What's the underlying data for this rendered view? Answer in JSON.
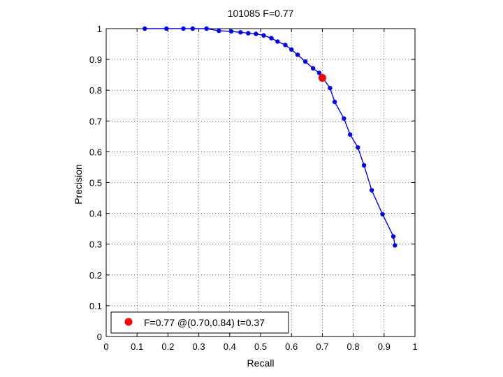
{
  "chart_data": {
    "type": "line",
    "title": "101085 F=0.77",
    "xlabel": "Recall",
    "ylabel": "Precision",
    "xlim": [
      0,
      1
    ],
    "ylim": [
      0,
      1
    ],
    "xticks": [
      "0",
      "0.1",
      "0.2",
      "0.3",
      "0.4",
      "0.5",
      "0.6",
      "0.7",
      "0.8",
      "0.9",
      "1"
    ],
    "yticks": [
      "0",
      "0.1",
      "0.2",
      "0.3",
      "0.4",
      "0.5",
      "0.6",
      "0.7",
      "0.8",
      "0.9",
      "1"
    ],
    "grid": true,
    "series": [
      {
        "color": "#0000ff",
        "points": [
          [
            0.125,
            1.0
          ],
          [
            0.195,
            1.0
          ],
          [
            0.25,
            1.0
          ],
          [
            0.28,
            1.0
          ],
          [
            0.325,
            1.0
          ],
          [
            0.365,
            0.993
          ],
          [
            0.405,
            0.991
          ],
          [
            0.435,
            0.988
          ],
          [
            0.46,
            0.985
          ],
          [
            0.485,
            0.983
          ],
          [
            0.51,
            0.978
          ],
          [
            0.535,
            0.969
          ],
          [
            0.555,
            0.958
          ],
          [
            0.58,
            0.947
          ],
          [
            0.6,
            0.932
          ],
          [
            0.62,
            0.915
          ],
          [
            0.645,
            0.893
          ],
          [
            0.67,
            0.871
          ],
          [
            0.69,
            0.856
          ],
          [
            0.725,
            0.807
          ],
          [
            0.74,
            0.762
          ],
          [
            0.77,
            0.708
          ],
          [
            0.79,
            0.656
          ],
          [
            0.815,
            0.614
          ],
          [
            0.835,
            0.556
          ],
          [
            0.86,
            0.475
          ],
          [
            0.895,
            0.397
          ],
          [
            0.93,
            0.325
          ],
          [
            0.935,
            0.296
          ]
        ]
      }
    ],
    "highlight": {
      "color": "#ff0000",
      "x": 0.7,
      "y": 0.84,
      "label": "F=0.77 @(0.70,0.84) t=0.37"
    },
    "legend_position": "bottom-left"
  }
}
